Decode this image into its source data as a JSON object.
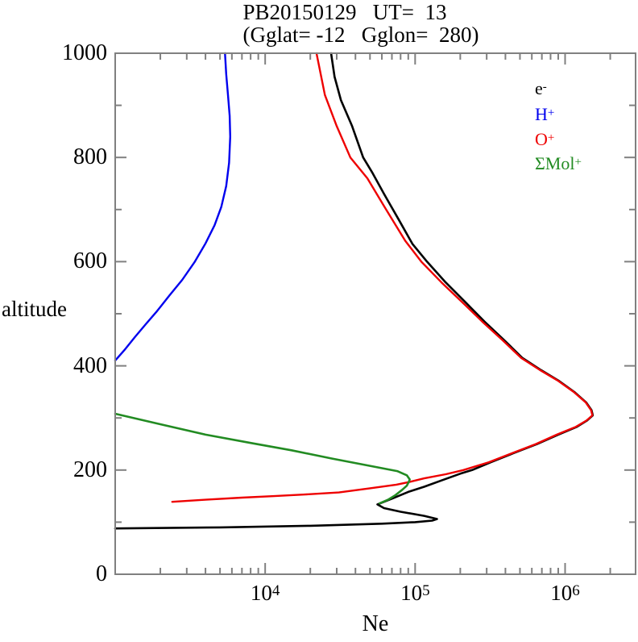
{
  "title": {
    "line1": "PB20150129   UT=  13",
    "line2": "(Gglat= -12   Gglon=  280)"
  },
  "axes": {
    "y_label": "altitude",
    "x_label": "Ne"
  },
  "legend": [
    {
      "main": "e",
      "sup": "-",
      "color": "#000000"
    },
    {
      "main": "H",
      "sup": "+",
      "color": "#0000ee"
    },
    {
      "main": "O",
      "sup": "+",
      "color": "#ee0000"
    },
    {
      "main": "ΣMol",
      "sup": "+",
      "color": "#228b22"
    }
  ],
  "frame_color": "#808080",
  "chart_data": {
    "type": "line",
    "title": "PB20150129  UT= 13  (Gglat= -12  Gglon= 280)",
    "xlabel": "Ne",
    "ylabel": "altitude",
    "xscale": "log",
    "xlim": [
      1000,
      2950000
    ],
    "ylim": [
      0,
      1000
    ],
    "grid": false,
    "legend_position": "upper-right-inside",
    "x_ticks": [
      {
        "base": "10",
        "exp": "4",
        "value": 10000
      },
      {
        "base": "10",
        "exp": "5",
        "value": 100000
      },
      {
        "base": "10",
        "exp": "6",
        "value": 1000000
      }
    ],
    "y_ticks": [
      {
        "label": "0",
        "value": 0
      },
      {
        "label": "200",
        "value": 200
      },
      {
        "label": "400",
        "value": 400
      },
      {
        "label": "600",
        "value": 600
      },
      {
        "label": "800",
        "value": 800
      },
      {
        "label": "1000",
        "value": 1000
      }
    ],
    "series": [
      {
        "name": "e-",
        "color": "#000000",
        "width": 2.6,
        "points_ne_alt": [
          [
            1000,
            88
          ],
          [
            5000,
            90
          ],
          [
            20000,
            93
          ],
          [
            60000,
            97
          ],
          [
            100000,
            100
          ],
          [
            130000,
            103
          ],
          [
            140000,
            106
          ],
          [
            115000,
            112
          ],
          [
            80000,
            120
          ],
          [
            62000,
            127
          ],
          [
            56000,
            134
          ],
          [
            70000,
            145
          ],
          [
            90000,
            158
          ],
          [
            115000,
            168
          ],
          [
            150000,
            180
          ],
          [
            200000,
            193
          ],
          [
            240000,
            200
          ],
          [
            320000,
            215
          ],
          [
            450000,
            232
          ],
          [
            650000,
            250
          ],
          [
            900000,
            268
          ],
          [
            1200000,
            283
          ],
          [
            1400000,
            295
          ],
          [
            1530000,
            305
          ],
          [
            1500000,
            315
          ],
          [
            1380000,
            330
          ],
          [
            1150000,
            350
          ],
          [
            900000,
            372
          ],
          [
            690000,
            392
          ],
          [
            520000,
            415
          ],
          [
            390000,
            450
          ],
          [
            290000,
            485
          ],
          [
            220000,
            520
          ],
          [
            160000,
            560
          ],
          [
            120000,
            600
          ],
          [
            96000,
            634
          ],
          [
            78000,
            680
          ],
          [
            62000,
            730
          ],
          [
            52000,
            770
          ],
          [
            45000,
            800
          ],
          [
            38000,
            860
          ],
          [
            32000,
            910
          ],
          [
            29000,
            955
          ],
          [
            27500,
            1000
          ]
        ]
      },
      {
        "name": "H+",
        "color": "#0000ee",
        "width": 2.4,
        "points_ne_alt": [
          [
            1000,
            410
          ],
          [
            1150,
            430
          ],
          [
            1350,
            455
          ],
          [
            1600,
            480
          ],
          [
            1900,
            505
          ],
          [
            2300,
            535
          ],
          [
            2800,
            565
          ],
          [
            3400,
            600
          ],
          [
            4000,
            635
          ],
          [
            4600,
            670
          ],
          [
            5100,
            705
          ],
          [
            5500,
            745
          ],
          [
            5750,
            790
          ],
          [
            5850,
            840
          ],
          [
            5800,
            880
          ],
          [
            5650,
            920
          ],
          [
            5500,
            960
          ],
          [
            5400,
            1000
          ]
        ]
      },
      {
        "name": "O+",
        "color": "#ee0000",
        "width": 2.4,
        "points_ne_alt": [
          [
            2400,
            139
          ],
          [
            4000,
            143
          ],
          [
            7000,
            147
          ],
          [
            11500,
            150
          ],
          [
            18000,
            153
          ],
          [
            31000,
            157
          ],
          [
            50000,
            165
          ],
          [
            75000,
            172
          ],
          [
            91000,
            177
          ],
          [
            115000,
            184
          ],
          [
            160000,
            192
          ],
          [
            210000,
            200
          ],
          [
            310000,
            215
          ],
          [
            440000,
            232
          ],
          [
            640000,
            250
          ],
          [
            880000,
            268
          ],
          [
            1180000,
            283
          ],
          [
            1390000,
            295
          ],
          [
            1520000,
            305
          ],
          [
            1490000,
            315
          ],
          [
            1370000,
            330
          ],
          [
            1140000,
            350
          ],
          [
            890000,
            372
          ],
          [
            680000,
            392
          ],
          [
            510000,
            415
          ],
          [
            380000,
            450
          ],
          [
            280000,
            485
          ],
          [
            210000,
            520
          ],
          [
            150000,
            560
          ],
          [
            110000,
            600
          ],
          [
            86000,
            640
          ],
          [
            64000,
            700
          ],
          [
            48000,
            760
          ],
          [
            37000,
            800
          ],
          [
            30000,
            860
          ],
          [
            25000,
            920
          ],
          [
            22000,
            1000
          ]
        ]
      },
      {
        "name": "SMol+",
        "color": "#228b22",
        "width": 2.6,
        "points_ne_alt": [
          [
            1000,
            308
          ],
          [
            2000,
            288
          ],
          [
            4000,
            268
          ],
          [
            8000,
            252
          ],
          [
            15000,
            238
          ],
          [
            28000,
            222
          ],
          [
            50000,
            208
          ],
          [
            76000,
            198
          ],
          [
            88000,
            190
          ],
          [
            92000,
            182
          ],
          [
            91000,
            178
          ],
          [
            88000,
            170
          ],
          [
            82000,
            162
          ],
          [
            74000,
            152
          ],
          [
            66000,
            143
          ],
          [
            58000,
            136
          ]
        ]
      }
    ]
  }
}
